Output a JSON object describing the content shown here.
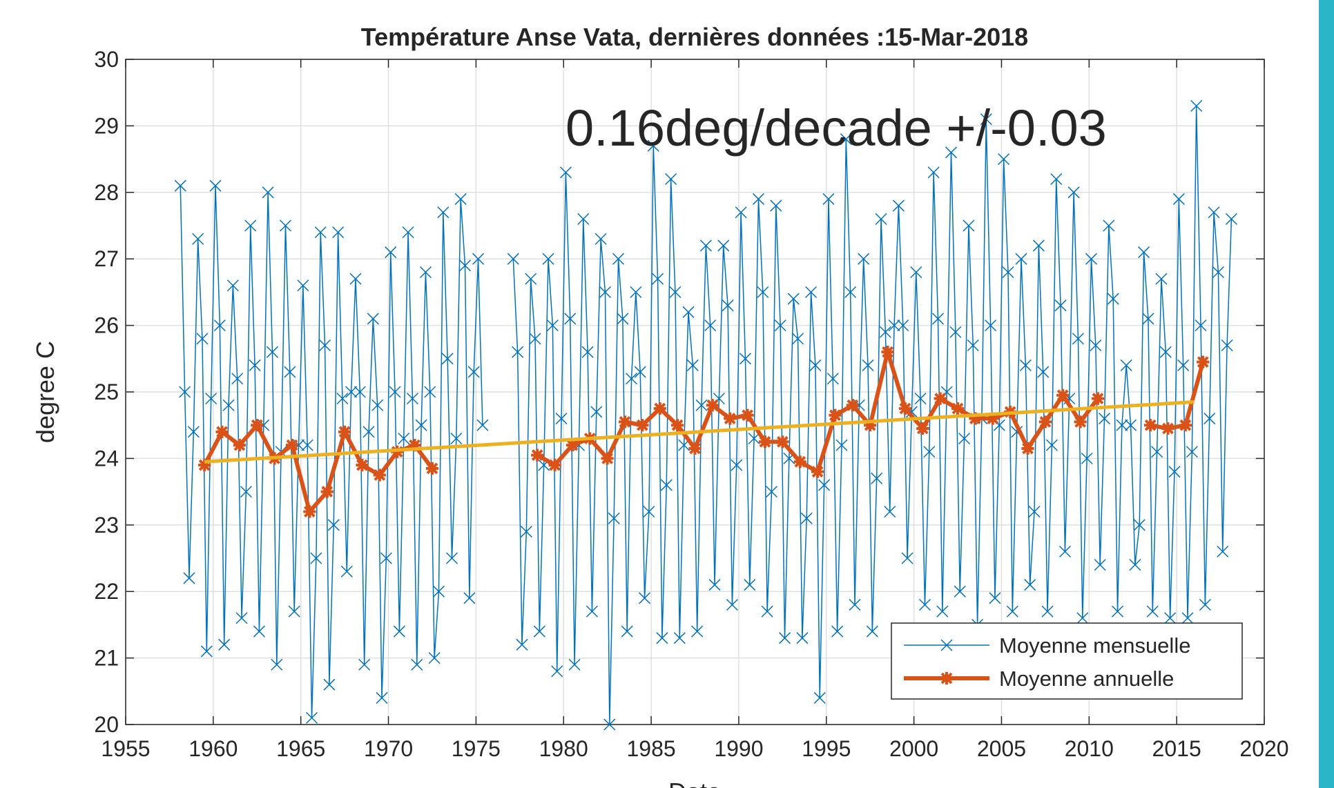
{
  "chart_data": {
    "type": "line",
    "title": "Température Anse Vata, dernières données :15-Mar-2018",
    "annotation": "0.16deg/decade +/-0.03",
    "xlabel": "Date",
    "ylabel": "degree C",
    "xlim": [
      1955,
      2020
    ],
    "xticks": [
      1955,
      1960,
      1965,
      1970,
      1975,
      1980,
      1985,
      1990,
      1995,
      2000,
      2005,
      2010,
      2015,
      2020
    ],
    "ylim": [
      20,
      30
    ],
    "yticks": [
      20,
      21,
      22,
      23,
      24,
      25,
      26,
      27,
      28,
      29,
      30
    ],
    "grid": true,
    "legend": "lower right",
    "series": [
      {
        "name": "Moyenne mensuelle",
        "color": "#0072bd",
        "marker": "x",
        "x": [
          1958.125,
          1958.375,
          1958.625,
          1958.875,
          1959.125,
          1959.375,
          1959.625,
          1959.875,
          1960.125,
          1960.375,
          1960.625,
          1960.875,
          1961.125,
          1961.375,
          1961.625,
          1961.875,
          1962.125,
          1962.375,
          1962.625,
          1962.875,
          1963.125,
          1963.375,
          1963.625,
          1963.875,
          1964.125,
          1964.375,
          1964.625,
          1964.875,
          1965.125,
          1965.375,
          1965.625,
          1965.875,
          1966.125,
          1966.375,
          1966.625,
          1966.875,
          1967.125,
          1967.375,
          1967.625,
          1967.875,
          1968.125,
          1968.375,
          1968.625,
          1968.875,
          1969.125,
          1969.375,
          1969.625,
          1969.875,
          1970.125,
          1970.375,
          1970.625,
          1970.875,
          1971.125,
          1971.375,
          1971.625,
          1971.875,
          1972.125,
          1972.375,
          1972.625,
          1972.875,
          1973.125,
          1973.375,
          1973.625,
          1973.875,
          1974.125,
          1974.375,
          1974.625,
          1974.875,
          1975.125,
          1975.375,
          1976.0,
          1977.125,
          1977.375,
          1977.625,
          1977.875,
          1978.125,
          1978.375,
          1978.625,
          1978.875,
          1979.125,
          1979.375,
          1979.625,
          1979.875,
          1980.125,
          1980.375,
          1980.625,
          1980.875,
          1981.125,
          1981.375,
          1981.625,
          1981.875,
          1982.125,
          1982.375,
          1982.625,
          1982.875,
          1983.125,
          1983.375,
          1983.625,
          1983.875,
          1984.125,
          1984.375,
          1984.625,
          1984.875,
          1985.125,
          1985.375,
          1985.625,
          1985.875,
          1986.125,
          1986.375,
          1986.625,
          1986.875,
          1987.125,
          1987.375,
          1987.625,
          1987.875,
          1988.125,
          1988.375,
          1988.625,
          1988.875,
          1989.125,
          1989.375,
          1989.625,
          1989.875,
          1990.125,
          1990.375,
          1990.625,
          1990.875,
          1991.125,
          1991.375,
          1991.625,
          1991.875,
          1992.125,
          1992.375,
          1992.625,
          1992.875,
          1993.125,
          1993.375,
          1993.625,
          1993.875,
          1994.125,
          1994.375,
          1994.625,
          1994.875,
          1995.125,
          1995.375,
          1995.625,
          1995.875,
          1996.125,
          1996.375,
          1996.625,
          1996.875,
          1997.125,
          1997.375,
          1997.625,
          1997.875,
          1998.125,
          1998.375,
          1998.625,
          1998.875,
          1999.125,
          1999.375,
          1999.625,
          1999.875,
          2000.125,
          2000.375,
          2000.625,
          2000.875,
          2001.125,
          2001.375,
          2001.625,
          2001.875,
          2002.125,
          2002.375,
          2002.625,
          2002.875,
          2003.125,
          2003.375,
          2003.625,
          2003.875,
          2004.125,
          2004.375,
          2004.625,
          2004.875,
          2005.125,
          2005.375,
          2005.625,
          2005.875,
          2006.125,
          2006.375,
          2006.625,
          2006.875,
          2007.125,
          2007.375,
          2007.625,
          2007.875,
          2008.125,
          2008.375,
          2008.625,
          2008.875,
          2009.125,
          2009.375,
          2009.625,
          2009.875,
          2010.125,
          2010.375,
          2010.625,
          2010.875,
          2011.125,
          2011.375,
          2011.625,
          2011.875,
          2012.125,
          2012.375,
          2012.625,
          2012.875,
          2013.125,
          2013.375,
          2013.625,
          2013.875,
          2014.125,
          2014.375,
          2014.625,
          2014.875,
          2015.125,
          2015.375,
          2015.625,
          2015.875,
          2016.125,
          2016.375,
          2016.625,
          2016.875,
          2017.125,
          2017.375,
          2017.625,
          2017.875,
          2018.125
        ],
        "values": [
          28.1,
          25.0,
          22.2,
          24.4,
          27.3,
          25.8,
          21.1,
          24.9,
          28.1,
          26.0,
          21.2,
          24.8,
          26.6,
          25.2,
          21.6,
          23.5,
          27.5,
          25.4,
          21.4,
          24.5,
          28.0,
          25.6,
          20.9,
          24.1,
          27.5,
          25.3,
          21.7,
          24.2,
          26.6,
          24.2,
          20.1,
          22.5,
          27.4,
          25.7,
          20.6,
          23.0,
          27.4,
          24.9,
          22.3,
          25.0,
          26.7,
          25.0,
          20.9,
          24.4,
          26.1,
          24.8,
          20.4,
          22.5,
          27.1,
          25.0,
          21.4,
          24.3,
          27.4,
          24.9,
          20.9,
          24.5,
          26.8,
          25.0,
          21.0,
          22.0,
          27.7,
          25.5,
          22.5,
          24.3,
          27.9,
          26.9,
          21.9,
          25.3,
          27.0,
          24.5,
          null,
          27.0,
          25.6,
          21.2,
          22.9,
          26.7,
          25.8,
          21.4,
          23.9,
          27.0,
          26.0,
          20.8,
          24.6,
          28.3,
          26.1,
          20.9,
          24.2,
          27.6,
          25.6,
          21.7,
          24.7,
          27.3,
          26.5,
          20.0,
          23.1,
          27.0,
          26.1,
          21.4,
          25.2,
          26.5,
          25.3,
          21.9,
          23.2,
          28.7,
          26.7,
          21.3,
          23.6,
          28.2,
          26.5,
          21.3,
          24.2,
          26.2,
          25.4,
          21.4,
          24.8,
          27.2,
          26.0,
          22.1,
          24.9,
          27.2,
          26.3,
          21.8,
          23.9,
          27.7,
          25.5,
          22.1,
          24.3,
          27.9,
          26.5,
          21.7,
          23.5,
          27.8,
          26.0,
          21.3,
          24.0,
          26.4,
          25.8,
          21.3,
          23.1,
          26.5,
          25.4,
          20.4,
          23.6,
          27.9,
          25.2,
          21.4,
          24.2,
          28.8,
          26.5,
          21.8,
          24.8,
          27.0,
          25.4,
          21.4,
          23.7,
          27.6,
          25.9,
          23.2,
          26.0,
          27.8,
          26.0,
          22.5,
          24.7,
          26.8,
          24.9,
          21.8,
          24.1,
          28.3,
          26.1,
          21.7,
          25.0,
          28.6,
          25.9,
          22.0,
          24.3,
          27.5,
          25.7,
          21.5,
          24.6,
          29.1,
          26.0,
          21.9,
          24.5,
          28.5,
          26.8,
          21.7,
          24.4,
          27.0,
          25.4,
          22.1,
          23.2,
          27.2,
          25.3,
          21.7,
          24.2,
          28.2,
          26.3,
          22.6,
          24.9,
          28.0,
          25.8,
          21.6,
          24.0,
          27.0,
          25.7,
          22.4,
          24.6,
          27.5,
          26.4,
          21.7,
          24.5,
          25.4,
          24.5,
          22.4,
          23.0,
          27.1,
          26.1,
          21.7,
          24.1,
          26.7,
          25.6,
          21.6,
          23.8,
          27.9,
          25.4,
          21.6,
          24.1,
          29.3,
          26.0,
          21.8,
          24.6,
          27.7,
          26.8,
          22.6,
          25.7,
          27.6
        ]
      },
      {
        "name": "Moyenne annuelle",
        "color": "#d95319",
        "marker": "*",
        "x": [
          1959.5,
          1960.5,
          1961.5,
          1962.5,
          1963.5,
          1964.5,
          1965.5,
          1966.5,
          1967.5,
          1968.5,
          1969.5,
          1970.5,
          1971.5,
          1972.5,
          1975.5,
          1978.5,
          1979.5,
          1980.5,
          1981.5,
          1982.5,
          1983.5,
          1984.5,
          1985.5,
          1986.5,
          1987.5,
          1988.5,
          1989.5,
          1990.5,
          1991.5,
          1992.5,
          1993.5,
          1994.5,
          1995.5,
          1996.5,
          1997.5,
          1998.5,
          1999.5,
          2000.5,
          2001.5,
          2002.5,
          2003.5,
          2004.5,
          2005.5,
          2006.5,
          2007.5,
          2008.5,
          2009.5,
          2010.5,
          2012.0,
          2013.5,
          2014.5,
          2015.5,
          2016.5
        ],
        "values": [
          23.9,
          24.4,
          24.2,
          24.5,
          24.0,
          24.2,
          23.2,
          23.5,
          24.4,
          23.9,
          23.75,
          24.1,
          24.2,
          23.85,
          null,
          24.05,
          23.9,
          24.2,
          24.3,
          24.0,
          24.55,
          24.5,
          24.75,
          24.5,
          24.15,
          24.8,
          24.6,
          24.65,
          24.25,
          24.25,
          23.95,
          23.8,
          24.65,
          24.8,
          24.5,
          25.6,
          24.75,
          24.45,
          24.9,
          24.75,
          24.6,
          24.6,
          24.7,
          24.15,
          24.55,
          24.95,
          24.55,
          24.9,
          null,
          24.5,
          24.45,
          24.5,
          25.45
        ]
      },
      {
        "color": "#edb120",
        "x": [
          1959.5,
          2016.0
        ],
        "values": [
          23.95,
          24.85
        ]
      }
    ]
  }
}
